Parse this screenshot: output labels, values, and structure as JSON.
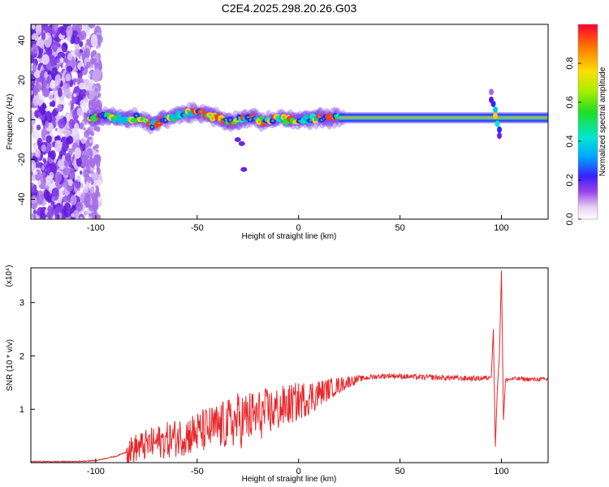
{
  "title": "C2E4.2025.298.20.26.G03",
  "chart_data": [
    {
      "type": "heatmap",
      "xlabel": "Height of straight line (km)",
      "ylabel": "Frequency (Hz)",
      "xlim": [
        -132,
        123
      ],
      "ylim": [
        -50,
        48
      ],
      "xticks": [
        -100,
        -50,
        0,
        50,
        100
      ],
      "yticks": [
        -40,
        -20,
        0,
        20,
        40
      ],
      "colorbar": {
        "label": "Normalized spectral amplitude",
        "range": [
          0,
          1
        ],
        "ticks": [
          0.0,
          0.2,
          0.4,
          0.6,
          0.8
        ],
        "tick_labels": [
          "0.0",
          "0.2",
          "0.4",
          "0.6",
          "0.8"
        ]
      },
      "ridge": {
        "description_x": [
          -103,
          -95,
          -90,
          -85,
          -80,
          -75,
          -72,
          -68,
          -60,
          -55,
          -50,
          -45,
          -40,
          -35,
          -30,
          -25,
          -20,
          -15,
          -10,
          -5,
          0,
          5,
          10,
          15,
          20,
          30,
          50,
          70,
          90,
          95,
          97,
          100,
          110,
          123
        ],
        "frequency": [
          1,
          2,
          1,
          0,
          1,
          -1,
          -3,
          0,
          2,
          3,
          4,
          3,
          1,
          -1,
          0,
          1,
          0,
          -1,
          1,
          0,
          0,
          0,
          1,
          1,
          1,
          1,
          1,
          1,
          1,
          1,
          4,
          1,
          1,
          1
        ]
      }
    },
    {
      "type": "line",
      "xlabel": "Height of straight line (km)",
      "ylabel": "SNR (10 * v/v)",
      "y_multiplier": "(x10⁴)",
      "xlim": [
        -132,
        123
      ],
      "ylim": [
        0,
        3.65
      ],
      "xticks": [
        -100,
        -50,
        0,
        50,
        100
      ],
      "yticks": [
        1,
        2,
        3
      ],
      "series": [
        {
          "color": "#e8262a",
          "x": [
            -132,
            -110,
            -100,
            -95,
            -90,
            -85,
            -80,
            -75,
            -70,
            -65,
            -60,
            -55,
            -50,
            -45,
            -40,
            -35,
            -30,
            -25,
            -20,
            -15,
            -10,
            -5,
            0,
            5,
            10,
            15,
            20,
            25,
            30,
            35,
            40,
            45,
            50,
            55,
            60,
            65,
            70,
            75,
            80,
            85,
            90,
            93,
            95,
            96,
            97,
            98,
            99,
            100,
            101,
            102,
            105,
            110,
            115,
            120,
            123
          ],
          "y": [
            0.02,
            0.02,
            0.04,
            0.08,
            0.12,
            0.2,
            0.28,
            0.33,
            0.38,
            0.42,
            0.47,
            0.52,
            0.56,
            0.62,
            0.66,
            0.72,
            0.78,
            0.84,
            0.88,
            0.95,
            1.0,
            1.08,
            1.15,
            1.22,
            1.3,
            1.38,
            1.45,
            1.52,
            1.57,
            1.6,
            1.62,
            1.63,
            1.62,
            1.61,
            1.6,
            1.6,
            1.59,
            1.59,
            1.58,
            1.58,
            1.58,
            1.59,
            1.6,
            2.5,
            0.3,
            1.4,
            2.0,
            3.6,
            0.8,
            1.55,
            1.57,
            1.57,
            1.56,
            1.56,
            1.56
          ]
        }
      ]
    }
  ]
}
